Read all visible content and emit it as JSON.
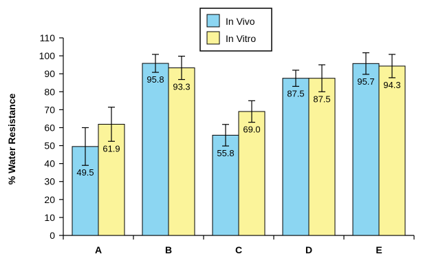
{
  "chart_data": {
    "type": "bar",
    "categories": [
      "A",
      "B",
      "C",
      "D",
      "E"
    ],
    "series": [
      {
        "name": "In Vivo",
        "color": "#8cd6f2",
        "values": [
          49.5,
          95.8,
          55.8,
          87.5,
          95.7
        ],
        "value_labels": [
          "49.5",
          "95.8",
          "55.8",
          "87.5",
          "95.7"
        ],
        "err": [
          10.5,
          5.0,
          6.0,
          4.5,
          6.0
        ]
      },
      {
        "name": "In Vitro",
        "color": "#fbf49a",
        "values": [
          61.9,
          93.3,
          69.0,
          87.5,
          94.3
        ],
        "value_labels": [
          "61.9",
          "93.3",
          "69.0",
          "87.5",
          "94.3"
        ],
        "err": [
          9.5,
          6.5,
          6.0,
          7.5,
          6.5
        ]
      }
    ],
    "ylabel": "% Water Resistance",
    "xlabel": "",
    "ylim": [
      0,
      110
    ],
    "yticks": [
      "0",
      "10",
      "20",
      "30",
      "40",
      "50",
      "60",
      "70",
      "80",
      "90",
      "100",
      "110"
    ],
    "grid": false,
    "legend_position": "top-center"
  }
}
